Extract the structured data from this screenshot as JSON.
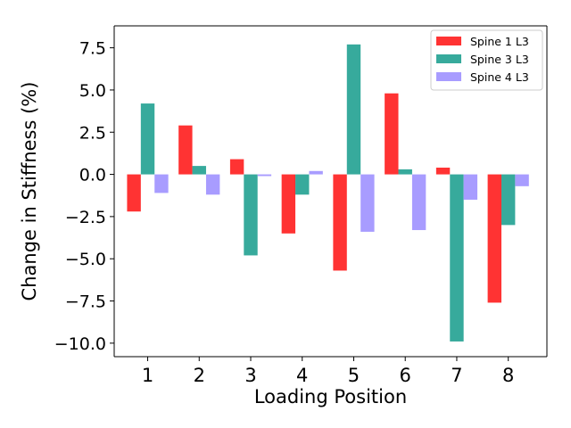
{
  "chart_data": {
    "type": "bar",
    "title": "",
    "xlabel": "Loading Position",
    "ylabel": "Change in Stiffness (%)",
    "categories": [
      "1",
      "2",
      "3",
      "4",
      "5",
      "6",
      "7",
      "8"
    ],
    "ylim": [
      -10.8,
      8.8
    ],
    "yticks": [
      7.5,
      5.0,
      2.5,
      0.0,
      -2.5,
      -5.0,
      -7.5,
      -10.0
    ],
    "ytick_labels": [
      "7.5",
      "5.0",
      "2.5",
      "0.0",
      "−2.5",
      "−5.0",
      "−7.5",
      "−10.0"
    ],
    "grid": false,
    "legend_position": "top-right",
    "series": [
      {
        "name": "Spine 1 L3",
        "color": "#ff3333",
        "values": [
          -2.2,
          2.9,
          0.9,
          -3.5,
          -5.7,
          4.8,
          0.4,
          -7.6
        ]
      },
      {
        "name": "Spine 3 L3",
        "color": "#37aa9c",
        "values": [
          4.2,
          0.5,
          -4.8,
          -1.2,
          7.7,
          0.3,
          -9.9,
          -3.0
        ]
      },
      {
        "name": "Spine 4 L3",
        "color": "#a89cff",
        "values": [
          -1.1,
          -1.2,
          -0.1,
          0.2,
          -3.4,
          -3.3,
          -1.5,
          -0.7
        ]
      }
    ]
  }
}
